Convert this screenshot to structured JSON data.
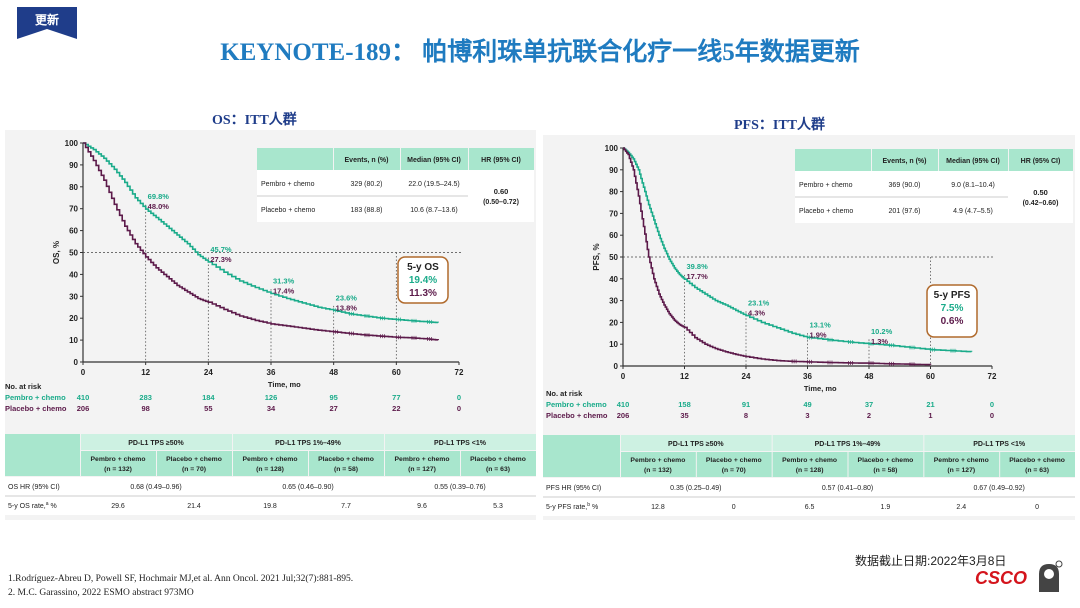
{
  "badge": "更新",
  "title": "KEYNOTE-189： 帕博利珠单抗联合化疗一线5年数据更新",
  "date_note": "数据截止日期:2022年3月8日",
  "references": [
    "1.Rodríguez-Abreu D, Powell SF, Hochmair MJ,et al. Ann Oncol. 2021 Jul;32(7):881-895.",
    "2. M.C. Garassino, 2022 ESMO abstract  973MO"
  ],
  "logo": "CSCO",
  "colors": {
    "pembro": "#1aab8a",
    "placebo": "#5c1a4a",
    "table_header": "#a8e6cd",
    "title_blue": "#1f7bc0",
    "badge": "#1f3d8a"
  },
  "chart_data": [
    {
      "type": "line",
      "title": "OS：ITT人群",
      "ylabel": "OS, %",
      "xlabel": "Time, mo",
      "xlim": [
        0,
        72
      ],
      "ylim": [
        0,
        100
      ],
      "xticks": [
        "0",
        "12",
        "24",
        "36",
        "48",
        "60",
        "72"
      ],
      "yticks": [
        "0",
        "10",
        "20",
        "30",
        "40",
        "50",
        "60",
        "70",
        "80",
        "90",
        "100"
      ],
      "series": [
        {
          "name": "Pembro + chemo",
          "x": [
            0,
            2,
            4,
            6,
            8,
            10,
            12,
            14,
            16,
            18,
            20,
            22,
            24,
            27,
            30,
            33,
            36,
            39,
            42,
            45,
            48,
            51,
            54,
            57,
            60,
            63,
            66,
            68
          ],
          "values": [
            100,
            97,
            93,
            88,
            82,
            75,
            69.8,
            66,
            62,
            58,
            54,
            49,
            45.7,
            41,
            37,
            34,
            31.3,
            29,
            27,
            25,
            23.6,
            22,
            21,
            20,
            19.4,
            18.8,
            18.3,
            18.0
          ]
        },
        {
          "name": "Placebo + chemo",
          "x": [
            0,
            2,
            4,
            6,
            8,
            10,
            12,
            14,
            16,
            18,
            20,
            22,
            24,
            27,
            30,
            33,
            36,
            39,
            42,
            45,
            48,
            51,
            54,
            57,
            60,
            63,
            66,
            68
          ],
          "values": [
            100,
            92,
            83,
            72,
            62,
            54,
            48.0,
            43,
            39,
            35,
            32,
            29,
            27.3,
            24,
            21,
            19,
            17.4,
            16.5,
            15.5,
            14.5,
            13.8,
            13,
            12.3,
            11.8,
            11.3,
            11,
            10.5,
            10.0
          ]
        }
      ],
      "annotations": [
        {
          "x": 12,
          "pembro": "69.8%",
          "placebo": "48.0%"
        },
        {
          "x": 24,
          "pembro": "45.7%",
          "placebo": "27.3%"
        },
        {
          "x": 36,
          "pembro": "31.3%",
          "placebo": "17.4%"
        },
        {
          "x": 48,
          "pembro": "23.6%",
          "placebo": "13.8%"
        }
      ],
      "callout": {
        "title": "5-y OS",
        "pembro": "19.4%",
        "placebo": "11.3%"
      },
      "reference_line": 50,
      "summary_table": {
        "headers": [
          "Events, n (%)",
          "Median (95% CI)",
          "HR (95% CI)"
        ],
        "rows": [
          [
            "Pembro + chemo",
            "329 (80.2)",
            "22.0 (19.5–24.5)"
          ],
          [
            "Placebo + chemo",
            "183 (88.8)",
            "10.6 (8.7–13.6)"
          ]
        ],
        "hr": "0.60",
        "hr_ci": "(0.50–0.72)"
      },
      "at_risk": {
        "label": "No. at risk",
        "rows": [
          {
            "name": "Pembro + chemo",
            "values": [
              "410",
              "283",
              "184",
              "126",
              "95",
              "77",
              "0"
            ]
          },
          {
            "name": "Placebo + chemo",
            "values": [
              "206",
              "98",
              "55",
              "34",
              "27",
              "22",
              "0"
            ]
          }
        ]
      },
      "subgroup_table": {
        "groups": [
          "PD-L1 TPS ≥50%",
          "PD-L1 TPS 1%–49%",
          "PD-L1 TPS <1%"
        ],
        "arms": [
          [
            "Pembro + chemo",
            "(n = 132)"
          ],
          [
            "Placebo + chemo",
            "(n = 70)"
          ],
          [
            "Pembro + chemo",
            "(n = 128)"
          ],
          [
            "Placebo + chemo",
            "(n = 58)"
          ],
          [
            "Pembro + chemo",
            "(n = 127)"
          ],
          [
            "Placebo + chemo",
            "(n = 63)"
          ]
        ],
        "row1_label": "OS HR (95% CI)",
        "row1_values": [
          "0.68 (0.49–0.96)",
          "0.65 (0.46–0.90)",
          "0.55 (0.39–0.76)"
        ],
        "row2_label": "5-y OS rate,",
        "row2_sup": "a",
        "row2_unit": " %",
        "row2_values": [
          "29.6",
          "21.4",
          "19.8",
          "7.7",
          "9.6",
          "5.3"
        ]
      }
    },
    {
      "type": "line",
      "title": "PFS：ITT人群",
      "ylabel": "PFS, %",
      "xlabel": "Time, mo",
      "xlim": [
        0,
        72
      ],
      "ylim": [
        0,
        100
      ],
      "xticks": [
        "0",
        "12",
        "24",
        "36",
        "48",
        "60",
        "72"
      ],
      "yticks": [
        "0",
        "10",
        "20",
        "30",
        "40",
        "50",
        "60",
        "70",
        "80",
        "90",
        "100"
      ],
      "series": [
        {
          "name": "Pembro + chemo",
          "x": [
            0,
            1,
            2,
            3,
            4,
            5,
            6,
            7,
            8,
            9,
            10,
            11,
            12,
            14,
            16,
            18,
            20,
            22,
            24,
            27,
            30,
            33,
            36,
            40,
            44,
            48,
            52,
            56,
            60,
            64,
            68
          ],
          "values": [
            100,
            98,
            95,
            90,
            82,
            74,
            67,
            60,
            54,
            49,
            45,
            42,
            39.8,
            36,
            33,
            30,
            28,
            25.5,
            23.1,
            20,
            17.5,
            15,
            13.1,
            12,
            11,
            10.2,
            9.5,
            8.5,
            7.5,
            7.0,
            6.5
          ]
        },
        {
          "name": "Placebo + chemo",
          "x": [
            0,
            1,
            2,
            3,
            4,
            5,
            6,
            7,
            8,
            9,
            10,
            11,
            12,
            14,
            16,
            18,
            20,
            22,
            24,
            27,
            30,
            33,
            36,
            40,
            44,
            48,
            52,
            56,
            60
          ],
          "values": [
            100,
            97,
            90,
            78,
            64,
            50,
            40,
            33,
            28,
            24,
            21,
            19,
            17.7,
            13,
            10,
            8,
            6.5,
            5.3,
            4.3,
            3.2,
            2.5,
            2.1,
            1.9,
            1.6,
            1.4,
            1.3,
            1.0,
            0.8,
            0.6
          ]
        }
      ],
      "annotations": [
        {
          "x": 12,
          "pembro": "39.8%",
          "placebo": "17.7%"
        },
        {
          "x": 24,
          "pembro": "23.1%",
          "placebo": "4.3%"
        },
        {
          "x": 36,
          "pembro": "13.1%",
          "placebo": "1.9%"
        },
        {
          "x": 48,
          "pembro": "10.2%",
          "placebo": "1.3%"
        }
      ],
      "callout": {
        "title": "5-y PFS",
        "pembro": "7.5%",
        "placebo": "0.6%"
      },
      "reference_line": 50,
      "summary_table": {
        "headers": [
          "Events, n (%)",
          "Median (95% CI)",
          "HR (95% CI)"
        ],
        "rows": [
          [
            "Pembro + chemo",
            "369 (90.0)",
            "9.0 (8.1–10.4)"
          ],
          [
            "Placebo + chemo",
            "201 (97.6)",
            "4.9 (4.7–5.5)"
          ]
        ],
        "hr": "0.50",
        "hr_ci": "(0.42–0.60)"
      },
      "at_risk": {
        "label": "No. at risk",
        "rows": [
          {
            "name": "Pembro + chemo",
            "values": [
              "410",
              "158",
              "91",
              "49",
              "37",
              "21",
              "0"
            ]
          },
          {
            "name": "Placebo + chemo",
            "values": [
              "206",
              "35",
              "8",
              "3",
              "2",
              "1",
              "0"
            ]
          }
        ]
      },
      "subgroup_table": {
        "groups": [
          "PD-L1 TPS ≥50%",
          "PD-L1 TPS 1%–49%",
          "PD-L1 TPS <1%"
        ],
        "arms": [
          [
            "Pembro + chemo",
            "(n = 132)"
          ],
          [
            "Placebo + chemo",
            "(n = 70)"
          ],
          [
            "Pembro + chemo",
            "(n = 128)"
          ],
          [
            "Placebo + chemo",
            "(n = 58)"
          ],
          [
            "Pembro + chemo",
            "(n = 127)"
          ],
          [
            "Placebo + chemo",
            "(n = 63)"
          ]
        ],
        "row1_label": "PFS HR (95% CI)",
        "row1_values": [
          "0.35 (0.25–0.49)",
          "0.57 (0.41–0.80)",
          "0.67 (0.49–0.92)"
        ],
        "row2_label": "5-y PFS rate,",
        "row2_sup": "b",
        "row2_unit": " %",
        "row2_values": [
          "12.8",
          "0",
          "6.5",
          "1.9",
          "2.4",
          "0"
        ]
      }
    }
  ]
}
